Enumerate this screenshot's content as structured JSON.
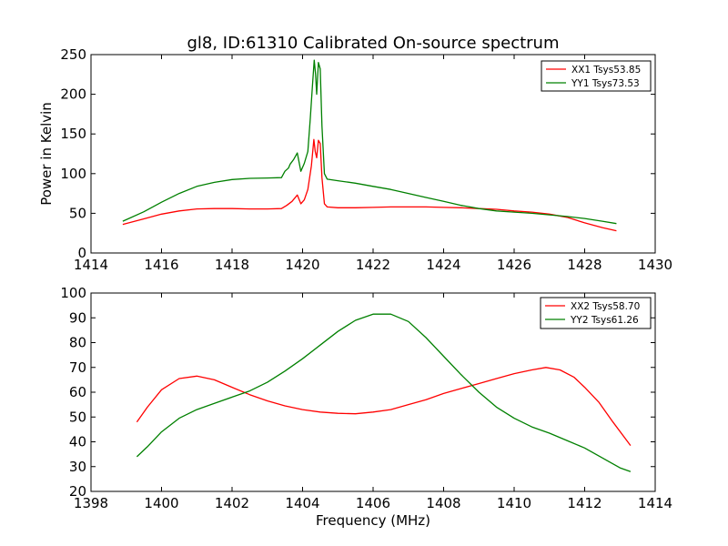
{
  "figure": {
    "title": "gl8, ID:61310 Calibrated On-source spectrum"
  },
  "chart_data": [
    {
      "type": "line",
      "title": "gl8, ID:61310 Calibrated On-source spectrum",
      "xlabel": "",
      "ylabel": "Power in Kelvin",
      "xlim": [
        1414,
        1430
      ],
      "ylim": [
        0,
        250
      ],
      "xticks": [
        "1414",
        "1416",
        "1418",
        "1420",
        "1422",
        "1424",
        "1426",
        "1428",
        "1430"
      ],
      "yticks": [
        "0",
        "50",
        "100",
        "150",
        "200",
        "250"
      ],
      "grid": false,
      "legend_position": "top-right",
      "series": [
        {
          "name": "XX1 Tsys53.85",
          "color": "#ff0000",
          "x": [
            1414.9,
            1415.5,
            1416.0,
            1416.5,
            1417.0,
            1417.5,
            1418.0,
            1418.5,
            1419.0,
            1419.4,
            1419.55,
            1419.7,
            1419.85,
            1419.95,
            1420.05,
            1420.15,
            1420.25,
            1420.32,
            1420.36,
            1420.4,
            1420.45,
            1420.5,
            1420.55,
            1420.62,
            1420.7,
            1421.0,
            1421.5,
            1422.0,
            1422.5,
            1423.0,
            1423.5,
            1424.0,
            1424.5,
            1425.0,
            1425.5,
            1426.0,
            1426.5,
            1427.0,
            1427.5,
            1428.0,
            1428.5,
            1428.9
          ],
          "values": [
            36,
            43,
            49,
            53,
            55.5,
            56,
            56,
            55.5,
            55.5,
            56,
            60,
            65,
            73,
            62,
            67,
            80,
            110,
            143,
            128,
            120,
            142,
            138,
            95,
            62,
            58,
            57,
            57,
            57.5,
            58,
            58,
            58,
            57.5,
            57,
            56,
            55,
            53,
            51.5,
            49,
            45,
            38,
            32,
            28
          ]
        },
        {
          "name": "YY1 Tsys73.53",
          "color": "#008000",
          "x": [
            1414.9,
            1415.5,
            1416.0,
            1416.5,
            1417.0,
            1417.5,
            1418.0,
            1418.5,
            1419.0,
            1419.4,
            1419.5,
            1419.6,
            1419.65,
            1419.75,
            1419.85,
            1419.95,
            1420.05,
            1420.15,
            1420.22,
            1420.28,
            1420.33,
            1420.37,
            1420.4,
            1420.45,
            1420.5,
            1420.55,
            1420.62,
            1420.7,
            1421.0,
            1421.5,
            1422.0,
            1422.5,
            1423.0,
            1423.5,
            1424.0,
            1424.5,
            1425.0,
            1425.5,
            1426.0,
            1426.5,
            1427.0,
            1427.5,
            1428.0,
            1428.5,
            1428.9
          ],
          "values": [
            40,
            52,
            64,
            75,
            84,
            89,
            92.5,
            94,
            94.5,
            95,
            103,
            107,
            112,
            118,
            126,
            103,
            113,
            128,
            170,
            210,
            243,
            225,
            200,
            240,
            232,
            160,
            100,
            93,
            91,
            88,
            84,
            80,
            75,
            70,
            65,
            60,
            56,
            53,
            51.5,
            50,
            48,
            46,
            43.5,
            40,
            37
          ]
        }
      ]
    },
    {
      "type": "line",
      "title": "",
      "xlabel": "Frequency (MHz)",
      "ylabel": "",
      "xlim": [
        1398,
        1414
      ],
      "ylim": [
        20,
        100
      ],
      "xticks": [
        "1398",
        "1400",
        "1402",
        "1404",
        "1406",
        "1408",
        "1410",
        "1412",
        "1414"
      ],
      "yticks": [
        "20",
        "30",
        "40",
        "50",
        "60",
        "70",
        "80",
        "90",
        "100"
      ],
      "grid": false,
      "legend_position": "top-right",
      "series": [
        {
          "name": "XX2 Tsys58.70",
          "color": "#ff0000",
          "x": [
            1399.3,
            1399.6,
            1400.0,
            1400.5,
            1401.0,
            1401.5,
            1402.0,
            1402.5,
            1403.0,
            1403.5,
            1404.0,
            1404.5,
            1405.0,
            1405.5,
            1406.0,
            1406.5,
            1407.0,
            1407.5,
            1408.0,
            1408.5,
            1409.0,
            1409.5,
            1410.0,
            1410.5,
            1410.9,
            1411.3,
            1411.7,
            1412.0,
            1412.4,
            1412.8,
            1413.3
          ],
          "values": [
            48,
            54,
            61,
            65.5,
            66.5,
            65,
            62,
            59,
            56.5,
            54.5,
            53,
            52,
            51.5,
            51.3,
            52,
            53,
            55,
            57,
            59.5,
            61.5,
            63.5,
            65.5,
            67.5,
            69,
            70,
            69,
            66,
            62,
            56,
            48,
            38.5
          ]
        },
        {
          "name": "YY2 Tsys61.26",
          "color": "#008000",
          "x": [
            1399.3,
            1399.6,
            1400.0,
            1400.5,
            1401.0,
            1401.5,
            1402.0,
            1402.5,
            1403.0,
            1403.5,
            1404.0,
            1404.5,
            1405.0,
            1405.5,
            1406.0,
            1406.5,
            1407.0,
            1407.5,
            1408.0,
            1408.5,
            1409.0,
            1409.5,
            1410.0,
            1410.5,
            1411.0,
            1411.5,
            1412.0,
            1412.5,
            1413.0,
            1413.3
          ],
          "values": [
            34,
            38,
            44,
            49.5,
            53,
            55.5,
            58,
            60.5,
            64,
            68.5,
            73.5,
            79,
            84.5,
            89,
            91.5,
            91.5,
            88.5,
            82,
            74.5,
            67,
            60,
            54,
            49.5,
            46,
            43.5,
            40.5,
            37.5,
            33.5,
            29.5,
            28
          ]
        }
      ]
    }
  ]
}
